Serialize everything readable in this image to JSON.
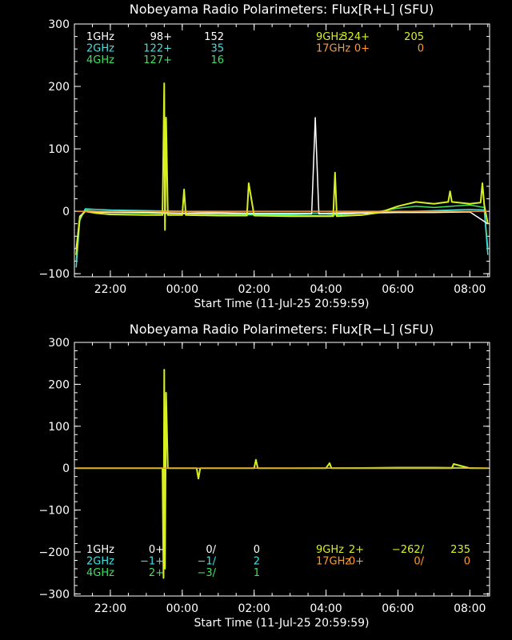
{
  "colors": {
    "background": "#000000",
    "axes": "#ffffff",
    "1GHz": "#ffffff",
    "2GHz": "#40e0e0",
    "4GHz": "#40e060",
    "9GHz": "#d8f020",
    "17GHz": "#ff9a30"
  },
  "chart_data": [
    {
      "type": "line",
      "title": "Nobeyama Radio Polarimeters: Flux[R+L] (SFU)",
      "xlabel": "Start Time (11-Jul-25 20:59:59)",
      "ylabel": "",
      "x_unit": "hours since start (11-Jul-25 20:59:59)",
      "xlim": [
        0,
        11.55
      ],
      "ylim": [
        -105,
        300
      ],
      "x_ticks": [
        {
          "value": 1.0,
          "label": "22:00"
        },
        {
          "value": 3.0,
          "label": "00:00"
        },
        {
          "value": 5.0,
          "label": "02:00"
        },
        {
          "value": 7.0,
          "label": "04:00"
        },
        {
          "value": 9.0,
          "label": "06:00"
        },
        {
          "value": 11.0,
          "label": "08:00"
        }
      ],
      "y_ticks": [
        {
          "value": -100,
          "label": "−100"
        },
        {
          "value": 0,
          "label": "0"
        },
        {
          "value": 100,
          "label": "100"
        },
        {
          "value": 200,
          "label": "200"
        },
        {
          "value": 300,
          "label": "300"
        }
      ],
      "legend": [
        {
          "name": "1GHz",
          "a": "98+",
          "b": "152",
          "color": "#ffffff"
        },
        {
          "name": "2GHz",
          "a": "122+",
          "b": "35",
          "color": "#40e0e0"
        },
        {
          "name": "4GHz",
          "a": "127+",
          "b": "16",
          "color": "#40e060"
        },
        {
          "name": "9GHz",
          "a": "324+",
          "b": "205",
          "color": "#d8f020"
        },
        {
          "name": "17GHz",
          "a": "0+",
          "b": "0",
          "color": "#ff9a30"
        }
      ],
      "legend_position": "top",
      "series": [
        {
          "name": "4GHz",
          "color": "#40e060",
          "x": [
            0.05,
            0.15,
            0.3,
            0.6,
            1.0,
            2.0,
            3.0,
            4.0,
            5.0,
            6.0,
            7.0,
            7.5,
            8.0,
            8.5,
            9.0,
            9.5,
            10.0,
            10.5,
            11.0,
            11.4,
            11.5
          ],
          "y": [
            -80,
            -10,
            2,
            0,
            -2,
            -3,
            -4,
            -5,
            -6,
            -6,
            -7,
            -5,
            -3,
            0,
            5,
            8,
            6,
            8,
            10,
            6,
            -60
          ]
        },
        {
          "name": "2GHz",
          "color": "#40e0e0",
          "x": [
            0.05,
            0.15,
            0.3,
            0.6,
            1.0,
            2.0,
            3.0,
            4.0,
            5.0,
            6.0,
            7.0,
            7.5,
            8.0,
            8.5,
            9.0,
            9.5,
            10.0,
            10.5,
            11.0,
            11.4,
            11.5
          ],
          "y": [
            -90,
            -15,
            4,
            3,
            2,
            1,
            0,
            -2,
            -3,
            -3,
            -3,
            -2,
            -2,
            -1,
            -1,
            0,
            1,
            2,
            3,
            2,
            -70
          ]
        },
        {
          "name": "1GHz",
          "color": "#ffffff",
          "x": [
            0.05,
            0.15,
            0.3,
            0.6,
            1.0,
            2.0,
            3.0,
            4.0,
            5.0,
            6.0,
            6.6,
            6.7,
            6.8,
            7.0,
            8.0,
            9.0,
            10.0,
            11.0,
            11.5
          ],
          "y": [
            -60,
            -8,
            0,
            -1,
            -2,
            -2,
            -3,
            -3,
            -4,
            -4,
            -4,
            150,
            -4,
            -4,
            -3,
            -2,
            -2,
            -1,
            -20
          ]
        },
        {
          "name": "9GHz",
          "color": "#d8f020",
          "x": [
            0.05,
            0.15,
            0.3,
            0.6,
            1.0,
            2.0,
            2.45,
            2.5,
            2.52,
            2.55,
            2.6,
            3.0,
            3.05,
            3.1,
            4.0,
            4.8,
            4.85,
            5.0,
            6.0,
            7.0,
            7.2,
            7.25,
            7.3,
            8.0,
            8.5,
            9.0,
            9.5,
            10.0,
            10.4,
            10.45,
            10.5,
            11.0,
            11.3,
            11.35,
            11.4,
            11.5
          ],
          "y": [
            -70,
            -10,
            0,
            -3,
            -5,
            -6,
            -6,
            205,
            -30,
            150,
            -6,
            -6,
            35,
            -6,
            -7,
            -7,
            45,
            -7,
            -8,
            -8,
            -8,
            62,
            -8,
            -6,
            -2,
            8,
            15,
            12,
            15,
            32,
            15,
            12,
            14,
            45,
            10,
            -20
          ]
        },
        {
          "name": "17GHz",
          "color": "#ff9a30",
          "x": [
            0.05,
            11.5
          ],
          "y": [
            0,
            0
          ]
        }
      ]
    },
    {
      "type": "line",
      "title": "Nobeyama Radio Polarimeters: Flux[R−L] (SFU)",
      "xlabel": "Start Time (11-Jul-25 20:59:59)",
      "ylabel": "",
      "x_unit": "hours since start (11-Jul-25 20:59:59)",
      "xlim": [
        0,
        11.55
      ],
      "ylim": [
        -305,
        300
      ],
      "x_ticks": [
        {
          "value": 1.0,
          "label": "22:00"
        },
        {
          "value": 3.0,
          "label": "00:00"
        },
        {
          "value": 5.0,
          "label": "02:00"
        },
        {
          "value": 7.0,
          "label": "04:00"
        },
        {
          "value": 9.0,
          "label": "06:00"
        },
        {
          "value": 11.0,
          "label": "08:00"
        }
      ],
      "y_ticks": [
        {
          "value": -300,
          "label": "−300"
        },
        {
          "value": -200,
          "label": "−200"
        },
        {
          "value": -100,
          "label": "−100"
        },
        {
          "value": 0,
          "label": "0"
        },
        {
          "value": 100,
          "label": "100"
        },
        {
          "value": 200,
          "label": "200"
        },
        {
          "value": 300,
          "label": "300"
        }
      ],
      "legend": [
        {
          "name": "1GHz",
          "a": "0+",
          "b": "0/",
          "c": "0",
          "color": "#ffffff"
        },
        {
          "name": "2GHz",
          "a": "−1+",
          "b": "−1/",
          "c": "2",
          "color": "#40e0e0"
        },
        {
          "name": "4GHz",
          "a": "2+",
          "b": "−3/",
          "c": "1",
          "color": "#40e060"
        },
        {
          "name": "9GHz",
          "a": "2+",
          "b": "−262/",
          "c": "235",
          "color": "#d8f020"
        },
        {
          "name": "17GHz",
          "a": "0+",
          "b": "0/",
          "c": "0",
          "color": "#ff9a30"
        }
      ],
      "legend_position": "bottom",
      "series": [
        {
          "name": "4GHz",
          "color": "#40e060",
          "x": [
            0.05,
            2.0,
            4.0,
            6.0,
            8.0,
            9.0,
            10.0,
            11.0,
            11.5
          ],
          "y": [
            0,
            0,
            0,
            0,
            1,
            2,
            2,
            1,
            0
          ]
        },
        {
          "name": "2GHz",
          "color": "#40e0e0",
          "x": [
            0.05,
            11.5
          ],
          "y": [
            0,
            0
          ]
        },
        {
          "name": "1GHz",
          "color": "#ffffff",
          "x": [
            0.05,
            11.5
          ],
          "y": [
            0,
            0
          ]
        },
        {
          "name": "9GHz",
          "color": "#d8f020",
          "x": [
            0.05,
            2.0,
            2.45,
            2.48,
            2.5,
            2.52,
            2.55,
            2.6,
            3.0,
            3.4,
            3.45,
            3.5,
            4.0,
            5.0,
            5.05,
            5.1,
            6.0,
            7.0,
            7.1,
            7.15,
            8.0,
            10.0,
            10.5,
            10.55,
            11.0,
            11.5
          ],
          "y": [
            0,
            0,
            0,
            -262,
            235,
            -240,
            180,
            0,
            0,
            0,
            -25,
            0,
            0,
            0,
            20,
            0,
            0,
            0,
            12,
            0,
            0,
            0,
            0,
            10,
            0,
            0
          ]
        },
        {
          "name": "17GHz",
          "color": "#ff9a30",
          "x": [
            0.05,
            11.5
          ],
          "y": [
            0,
            0
          ]
        }
      ]
    }
  ]
}
